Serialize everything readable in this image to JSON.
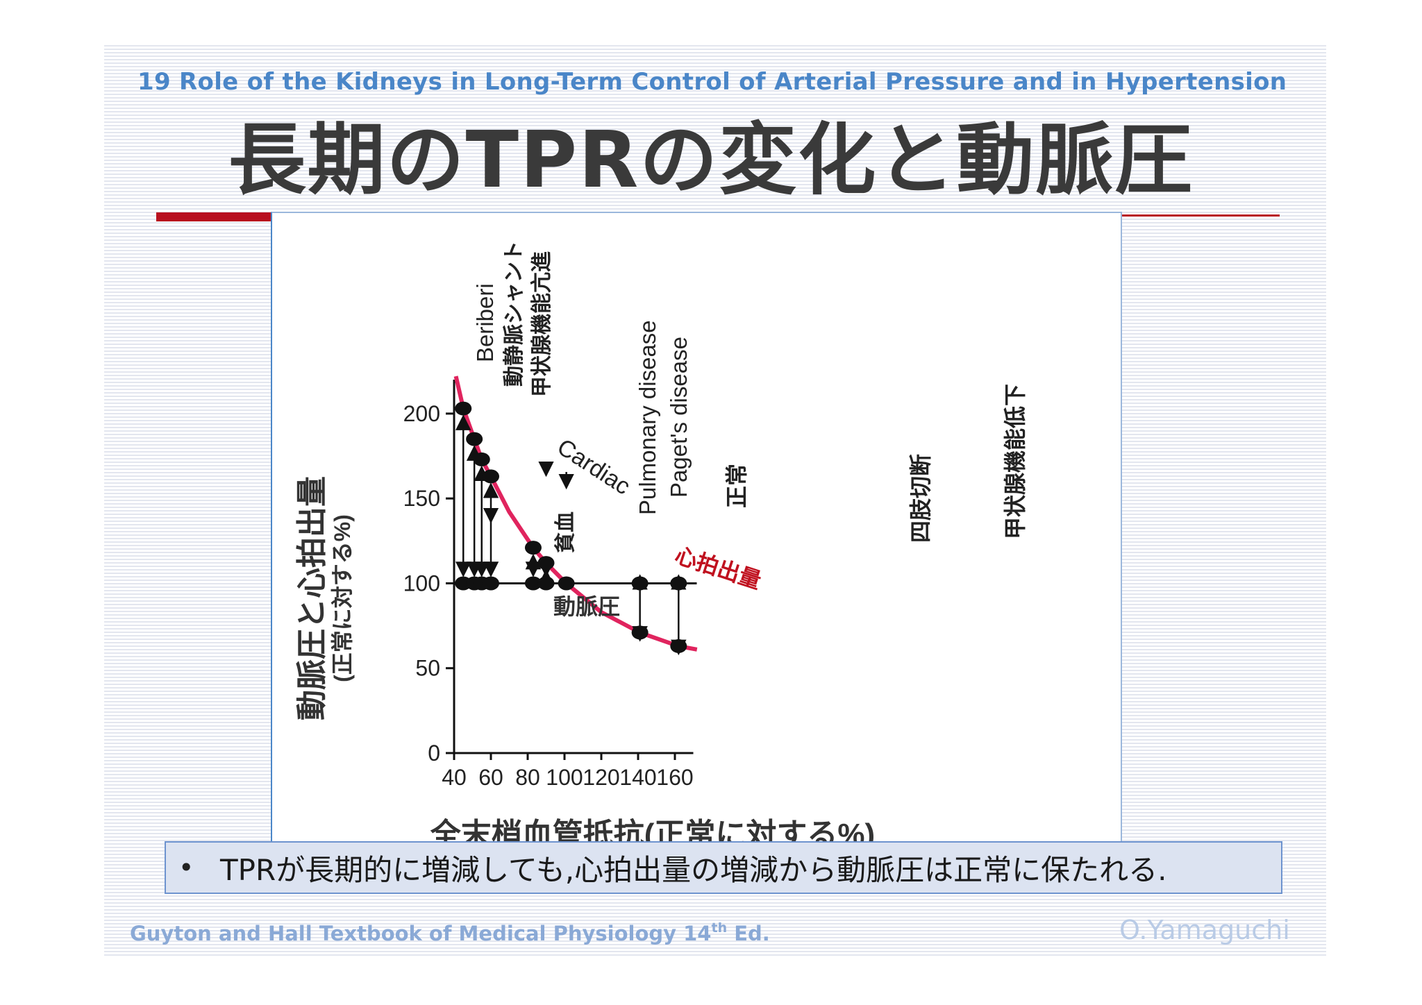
{
  "slide": {
    "subtitle": "19 Role of the Kidneys in Long-Term Control of Arterial Pressure and in Hypertension",
    "title": "長期のTPRの変化と動脈圧",
    "note": "TPRが長期的に増減しても,心拍出量の増減から動脈圧は正常に保たれる.",
    "bullet": "•",
    "reference": "Guyton and Hall Textbook of Medical Physiology 14",
    "reference_sup": "th",
    "reference_suffix": " Ed.",
    "author": "O.Yamaguchi",
    "colors": {
      "title": "#3a3a3a",
      "subtitle": "#4a86c8",
      "accent": "#b8101e",
      "curve": "#e0245e",
      "note_bg": "#dce3f1"
    }
  },
  "chart_data": {
    "type": "line",
    "xlabel": "全末梢血管抵抗(正常に対する%)",
    "ylabel": "動脈圧と心拍出量",
    "ylabel_sub": "(正常に対する%)",
    "xlim": [
      40,
      170
    ],
    "ylim": [
      0,
      220
    ],
    "x_ticks": [
      "40",
      "60",
      "80",
      "100",
      "120",
      "140",
      "160"
    ],
    "y_ticks": [
      "0",
      "50",
      "100",
      "150",
      "200"
    ],
    "curve_labels": {
      "cardiac_en": "Cardiac",
      "cardiac_jp": "心拍出量",
      "pressure_jp": "動脈圧"
    },
    "series": [
      {
        "name": "心拍出量",
        "x": [
          41,
          45,
          51,
          55,
          60,
          70,
          83,
          90,
          101,
          120,
          141,
          162,
          172
        ],
        "y": [
          222,
          203,
          185,
          173,
          163,
          142,
          121,
          112,
          100,
          83,
          71,
          63,
          61
        ]
      },
      {
        "name": "動脈圧",
        "x": [
          45,
          51,
          55,
          60,
          83,
          90,
          101,
          141,
          162
        ],
        "y": [
          100,
          100,
          100,
          100,
          100,
          100,
          100,
          100,
          100
        ]
      }
    ],
    "conditions": [
      {
        "label": "Beriberi",
        "x": 45,
        "cardiac_output": 203,
        "arterial_pressure": 100
      },
      {
        "label": "動静脈シャント",
        "x": 51,
        "cardiac_output": 185,
        "arterial_pressure": 100
      },
      {
        "label": "甲状腺機能亢進",
        "x": 55,
        "cardiac_output": 173,
        "arterial_pressure": 100
      },
      {
        "label": "貧血",
        "x": 60,
        "cardiac_output": 163,
        "arterial_pressure": 100
      },
      {
        "label": "Pulmonary disease",
        "x": 83,
        "cardiac_output": 121,
        "arterial_pressure": 100
      },
      {
        "label": "Paget's disease",
        "x": 90,
        "cardiac_output": 112,
        "arterial_pressure": 100
      },
      {
        "label": "正常",
        "x": 101,
        "cardiac_output": 100,
        "arterial_pressure": 100
      },
      {
        "label": "四肢切断",
        "x": 141,
        "cardiac_output": 71,
        "arterial_pressure": 100
      },
      {
        "label": "甲状腺機能低下",
        "x": 162,
        "cardiac_output": 63,
        "arterial_pressure": 100
      }
    ]
  }
}
